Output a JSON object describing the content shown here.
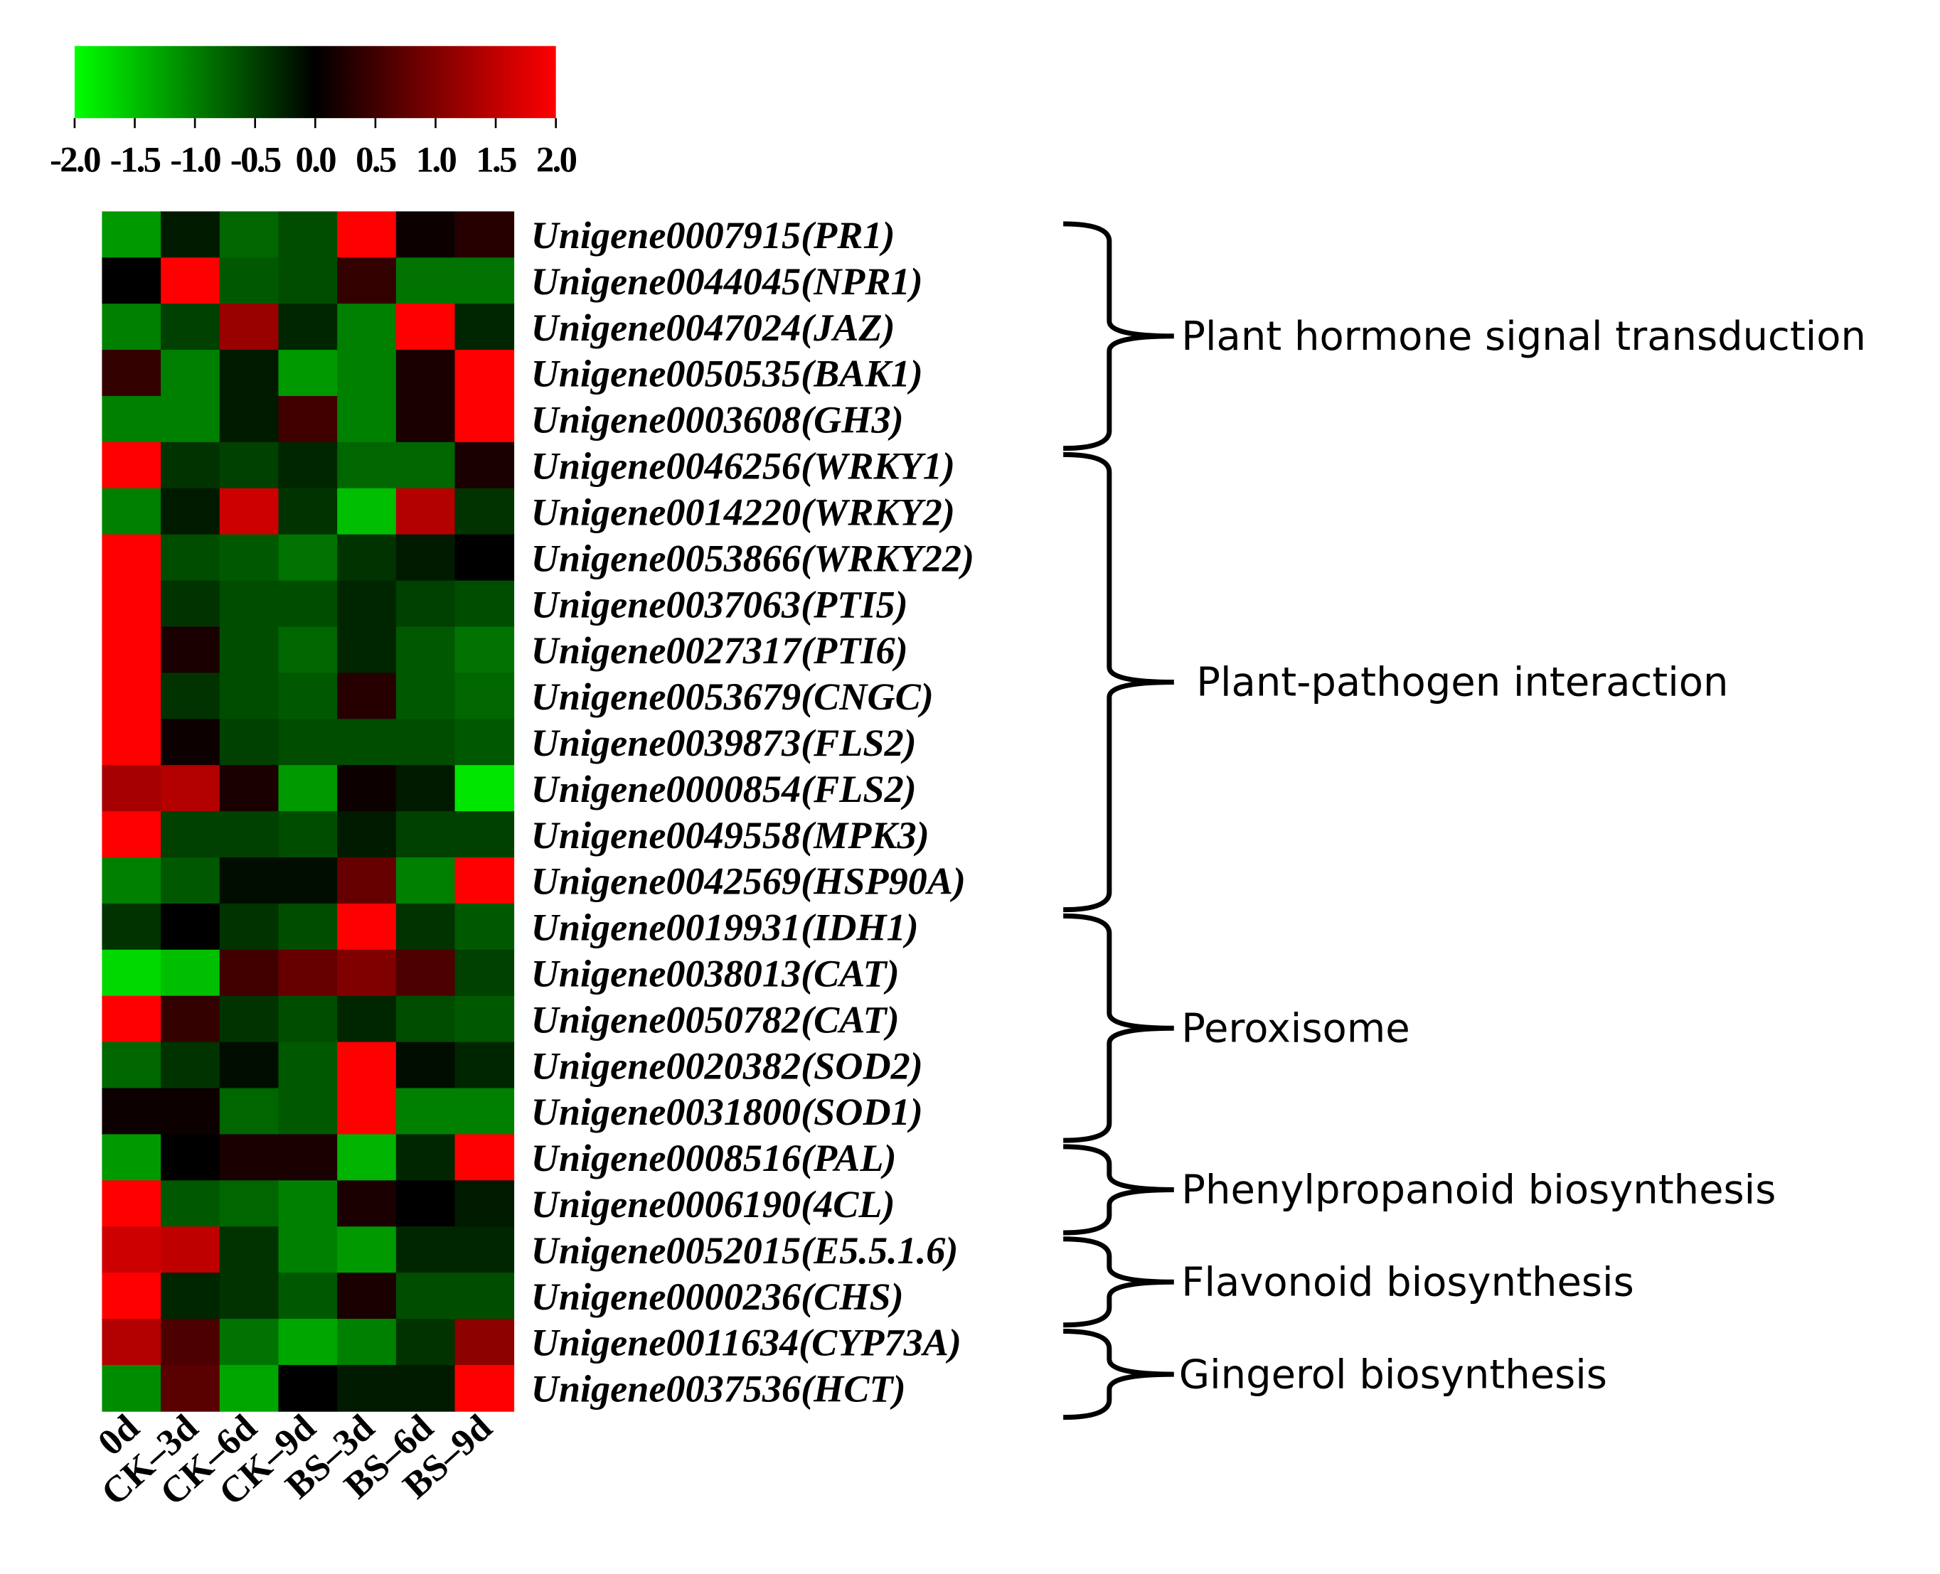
{
  "chart_data": {
    "type": "heatmap",
    "x": [
      "0d",
      "CK–3d",
      "CK–6d",
      "CK–9d",
      "BS–3d",
      "BS–6d",
      "BS–9d"
    ],
    "y": [
      "Unigene0007915(PR1)",
      "Unigene0044045(NPR1)",
      "Unigene0047024(JAZ)",
      "Unigene0050535(BAK1)",
      "Unigene0003608(GH3)",
      "Unigene0046256(WRKY1)",
      "Unigene0014220(WRKY2)",
      "Unigene0053866(WRKY22)",
      "Unigene0037063(PTI5)",
      "Unigene0027317(PTI6)",
      "Unigene0053679(CNGC)",
      "Unigene0039873(FLS2)",
      "Unigene0000854(FLS2)",
      "Unigene0049558(MPK3)",
      "Unigene0042569(HSP90A)",
      "Unigene0019931(IDH1)",
      "Unigene0038013(CAT)",
      "Unigene0050782(CAT)",
      "Unigene0020382(SOD2)",
      "Unigene0031800(SOD1)",
      "Unigene0008516(PAL)",
      "Unigene0006190(4CL)",
      "Unigene0052015(E5.5.1.6)",
      "Unigene0000236(CHS)",
      "Unigene0011634(CYP73A)",
      "Unigene0037536(HCT)"
    ],
    "values": [
      [
        -1.2,
        -0.2,
        -0.8,
        -0.6,
        2.0,
        0.1,
        0.3
      ],
      [
        0.0,
        2.0,
        -0.7,
        -0.6,
        0.4,
        -0.9,
        -0.9
      ],
      [
        -1.0,
        -0.5,
        1.2,
        -0.3,
        -1.0,
        2.0,
        -0.3
      ],
      [
        0.4,
        -1.0,
        -0.2,
        -1.2,
        -1.0,
        0.2,
        2.0
      ],
      [
        -1.0,
        -1.0,
        -0.2,
        0.5,
        -1.0,
        0.2,
        2.0
      ],
      [
        2.0,
        -0.4,
        -0.5,
        -0.3,
        -0.8,
        -0.8,
        0.2
      ],
      [
        -1.0,
        -0.2,
        1.6,
        -0.4,
        -1.5,
        1.4,
        -0.4
      ],
      [
        2.0,
        -0.6,
        -0.7,
        -0.9,
        -0.4,
        -0.2,
        0.0
      ],
      [
        2.0,
        -0.4,
        -0.6,
        -0.6,
        -0.3,
        -0.5,
        -0.6
      ],
      [
        2.0,
        0.2,
        -0.6,
        -0.8,
        -0.3,
        -0.7,
        -0.9
      ],
      [
        2.0,
        -0.4,
        -0.6,
        -0.7,
        0.3,
        -0.7,
        -0.8
      ],
      [
        2.0,
        0.1,
        -0.5,
        -0.6,
        -0.6,
        -0.6,
        -0.7
      ],
      [
        1.3,
        1.4,
        0.2,
        -1.2,
        0.1,
        -0.2,
        -1.8
      ],
      [
        2.0,
        -0.5,
        -0.5,
        -0.6,
        -0.2,
        -0.5,
        -0.5
      ],
      [
        -1.0,
        -0.7,
        -0.1,
        -0.1,
        0.8,
        -1.0,
        2.0
      ],
      [
        -0.4,
        0.0,
        -0.4,
        -0.6,
        2.0,
        -0.4,
        -0.7
      ],
      [
        -1.7,
        -1.5,
        0.5,
        0.8,
        1.0,
        0.6,
        -0.5
      ],
      [
        2.0,
        0.4,
        -0.4,
        -0.6,
        -0.3,
        -0.6,
        -0.7
      ],
      [
        -0.8,
        -0.4,
        -0.1,
        -0.7,
        2.0,
        -0.1,
        -0.3
      ],
      [
        0.1,
        0.1,
        -0.8,
        -0.7,
        2.0,
        -1.0,
        -1.0
      ],
      [
        -1.2,
        0.0,
        0.2,
        0.2,
        -1.4,
        -0.3,
        2.0
      ],
      [
        2.0,
        -0.7,
        -0.8,
        -1.0,
        0.2,
        0.0,
        -0.2
      ],
      [
        1.6,
        1.5,
        -0.4,
        -1.0,
        -1.2,
        -0.3,
        -0.3
      ],
      [
        2.0,
        -0.3,
        -0.4,
        -0.7,
        0.2,
        -0.6,
        -0.6
      ],
      [
        1.4,
        0.6,
        -0.9,
        -1.3,
        -1.0,
        -0.4,
        1.1
      ],
      [
        -1.1,
        0.7,
        -1.3,
        0.0,
        -0.2,
        -0.2,
        2.0
      ]
    ],
    "colorscale": [
      "#00ff00",
      "#000000",
      "#ff0000"
    ],
    "zlim": [
      -2,
      2
    ],
    "zticks": [
      {
        "value": -2,
        "label": "-2.0"
      },
      {
        "value": -1.5,
        "label": "-1.5"
      },
      {
        "value": -1,
        "label": "-1.0"
      },
      {
        "value": -0.5,
        "label": "-0.5"
      },
      {
        "value": 0,
        "label": "0.0"
      },
      0.5,
      {
        "value": 1,
        "label": "1.0"
      },
      1.5,
      {
        "value": 2,
        "label": "2.0"
      }
    ],
    "groups": [
      "Plant hormone signal transduction",
      "Plant-pathogen interaction",
      "Peroxisome",
      "Phenylpropanoid biosynthesis",
      "Flavonoid biosynthesis",
      "Gingerol biosynthesis"
    ]
  }
}
